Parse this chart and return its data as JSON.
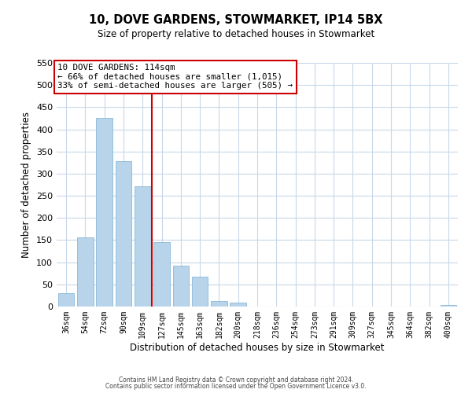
{
  "title": "10, DOVE GARDENS, STOWMARKET, IP14 5BX",
  "subtitle": "Size of property relative to detached houses in Stowmarket",
  "xlabel": "Distribution of detached houses by size in Stowmarket",
  "ylabel": "Number of detached properties",
  "bar_labels": [
    "36sqm",
    "54sqm",
    "72sqm",
    "90sqm",
    "109sqm",
    "127sqm",
    "145sqm",
    "163sqm",
    "182sqm",
    "200sqm",
    "218sqm",
    "236sqm",
    "254sqm",
    "273sqm",
    "291sqm",
    "309sqm",
    "327sqm",
    "345sqm",
    "364sqm",
    "382sqm",
    "400sqm"
  ],
  "bar_values": [
    30,
    157,
    425,
    328,
    272,
    145,
    92,
    68,
    13,
    8,
    0,
    0,
    0,
    0,
    0,
    0,
    0,
    0,
    0,
    0,
    3
  ],
  "bar_color": "#b8d4ea",
  "bar_edge_color": "#7aafd4",
  "vline_x": 4.5,
  "vline_color": "#cc0000",
  "ylim": [
    0,
    550
  ],
  "yticks": [
    0,
    50,
    100,
    150,
    200,
    250,
    300,
    350,
    400,
    450,
    500,
    550
  ],
  "annotation_title": "10 DOVE GARDENS: 114sqm",
  "annotation_line1": "← 66% of detached houses are smaller (1,015)",
  "annotation_line2": "33% of semi-detached houses are larger (505) →",
  "footer1": "Contains HM Land Registry data © Crown copyright and database right 2024.",
  "footer2": "Contains public sector information licensed under the Open Government Licence v3.0.",
  "bg_color": "#ffffff",
  "grid_color": "#c8d8e8",
  "annotation_box_color": "#ffffff",
  "annotation_box_edge": "#cc0000"
}
